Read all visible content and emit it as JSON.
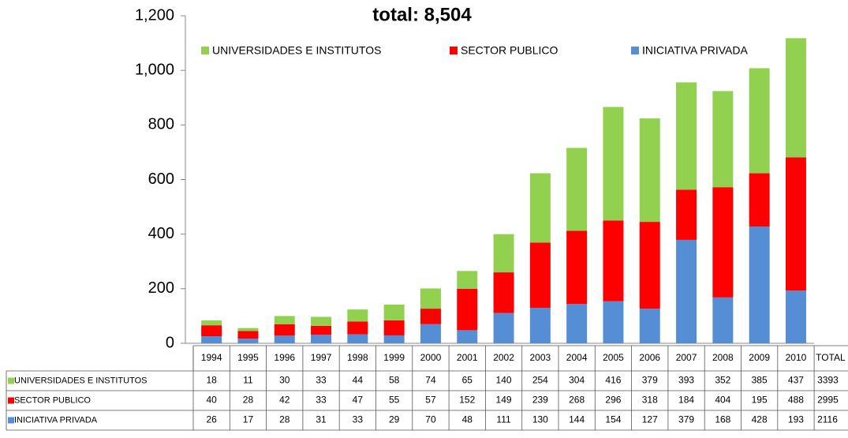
{
  "chart_data": {
    "type": "bar",
    "stacked": true,
    "title": "total: 8,504",
    "categories": [
      "1994",
      "1995",
      "1996",
      "1997",
      "1998",
      "1999",
      "2000",
      "2001",
      "2002",
      "2003",
      "2004",
      "2005",
      "2006",
      "2007",
      "2008",
      "2009",
      "2010"
    ],
    "total_label": "TOTAL",
    "series": [
      {
        "name": "UNIVERSIDADES E INSTITUTOS",
        "color": "#92d050",
        "values": [
          18,
          11,
          30,
          33,
          44,
          58,
          74,
          65,
          140,
          254,
          304,
          416,
          379,
          393,
          352,
          385,
          437
        ],
        "total": 3393
      },
      {
        "name": "SECTOR PUBLICO",
        "color": "#ff0000",
        "values": [
          40,
          28,
          42,
          33,
          47,
          55,
          57,
          152,
          149,
          239,
          268,
          296,
          318,
          184,
          404,
          195,
          488
        ],
        "total": 2995
      },
      {
        "name": "INICIATIVA PRIVADA",
        "color": "#558ed5",
        "values": [
          26,
          17,
          28,
          31,
          33,
          29,
          70,
          48,
          111,
          130,
          144,
          154,
          127,
          379,
          168,
          428,
          193
        ],
        "total": 2116
      }
    ],
    "ylim": [
      0,
      1200
    ],
    "yticks": [
      0,
      200,
      400,
      600,
      800,
      {
        "value": 1000,
        "label": "1,000"
      },
      {
        "value": 1200,
        "label": "1,200"
      }
    ],
    "grid": false
  }
}
